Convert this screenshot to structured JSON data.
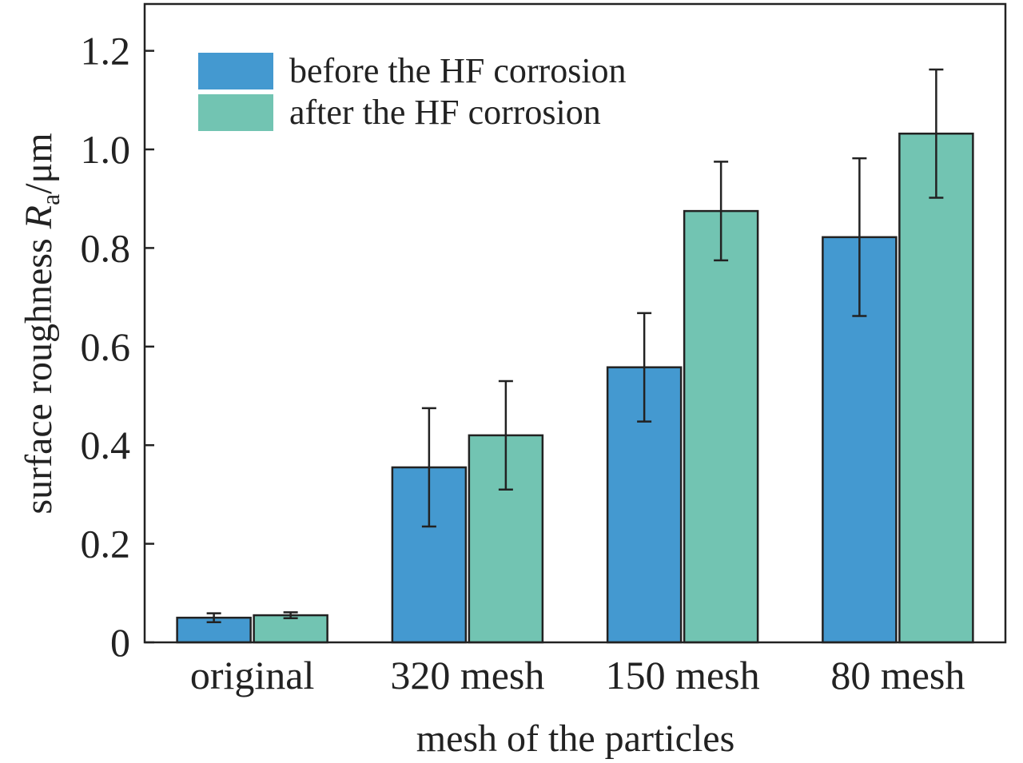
{
  "chart_data": {
    "type": "bar",
    "title": "",
    "xlabel": "mesh of the particles",
    "ylabel": {
      "prefix": "surface roughness ",
      "symbol": "R",
      "subscript": "a",
      "suffix": "/μm"
    },
    "categories": [
      "original",
      "320 mesh",
      "150 mesh",
      "80 mesh"
    ],
    "series": [
      {
        "name": "before the HF corrosion",
        "color": "#4499D0",
        "values": [
          0.05,
          0.355,
          0.558,
          0.822
        ],
        "error": [
          0.009,
          0.12,
          0.11,
          0.16
        ]
      },
      {
        "name": "after the HF corrosion",
        "color": "#72C4B2",
        "values": [
          0.055,
          0.42,
          0.875,
          1.032
        ],
        "error": [
          0.006,
          0.11,
          0.1,
          0.13
        ]
      }
    ],
    "ylim": [
      0,
      1.3
    ],
    "yticks": [
      0,
      0.2,
      0.4,
      0.6,
      0.8,
      1.0,
      1.2
    ],
    "ytick_labels": [
      "0",
      "0.2",
      "0.4",
      "0.6",
      "0.8",
      "1.0",
      "1.2"
    ],
    "legend_position": "top-left",
    "grid": false
  }
}
